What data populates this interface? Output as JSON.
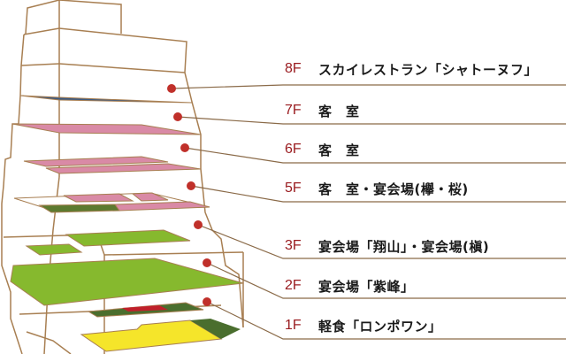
{
  "colors": {
    "outline": "#a87f52",
    "dot": "#c0302a",
    "floor_label": "#9a1c20",
    "blue_slab": "#3d5a80",
    "pink": "#d98aa6",
    "green": "#86b92e",
    "dark_green": "#4a6e2e",
    "red": "#c0202a",
    "yellow": "#f5e52a"
  },
  "floors": [
    {
      "floor": "8F",
      "name": "スカイレストラン「シャトーヌフ」"
    },
    {
      "floor": "7F",
      "name": "客　室"
    },
    {
      "floor": "6F",
      "name": "客　室"
    },
    {
      "floor": "5F",
      "name": "客　室・宴会場(欅・桜)"
    },
    {
      "floor": "3F",
      "name": "宴会場「翔山」・宴会場(槇)"
    },
    {
      "floor": "2F",
      "name": "宴会場「紫峰」"
    },
    {
      "floor": "1F",
      "name": "軽食「ロンポワン」"
    }
  ]
}
